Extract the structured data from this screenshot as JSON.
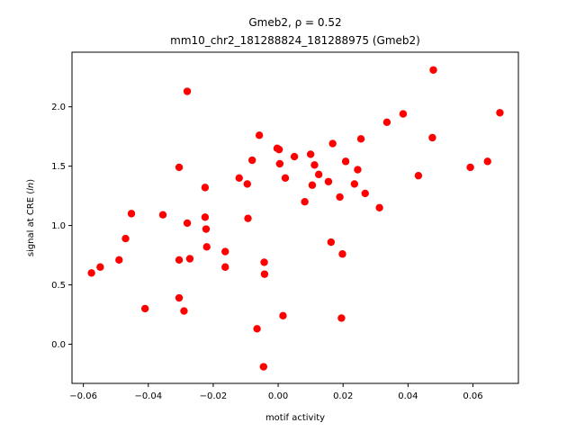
{
  "chart_data": {
    "type": "scatter",
    "title_line1": "Gmeb2, ρ = 0.52",
    "title_line2": "mm10_chr2_181288824_181288975 (Gmeb2)",
    "xlabel": "motif activity",
    "ylabel": "signal at CRE (ln)",
    "xlim": [
      -0.0635,
      0.074
    ],
    "ylim": [
      -0.33,
      2.46
    ],
    "xticks": [
      -0.06,
      -0.04,
      -0.02,
      0.0,
      0.02,
      0.04,
      0.06
    ],
    "xtick_labels": [
      "−0.06",
      "−0.04",
      "−0.02",
      "0.00",
      "0.02",
      "0.04",
      "0.06"
    ],
    "yticks": [
      0.0,
      0.5,
      1.0,
      1.5,
      2.0
    ],
    "ytick_labels": [
      "0.0",
      "0.5",
      "1.0",
      "1.5",
      "2.0"
    ],
    "grid": false,
    "marker_color": "#ff0000",
    "points": [
      {
        "x": -0.0575,
        "y": 0.6
      },
      {
        "x": -0.0548,
        "y": 0.65
      },
      {
        "x": -0.049,
        "y": 0.71
      },
      {
        "x": -0.047,
        "y": 0.89
      },
      {
        "x": -0.0452,
        "y": 1.1
      },
      {
        "x": -0.041,
        "y": 0.3
      },
      {
        "x": -0.0355,
        "y": 1.09
      },
      {
        "x": -0.0305,
        "y": 1.49
      },
      {
        "x": -0.0305,
        "y": 0.71
      },
      {
        "x": -0.0305,
        "y": 0.39
      },
      {
        "x": -0.029,
        "y": 0.28
      },
      {
        "x": -0.028,
        "y": 2.13
      },
      {
        "x": -0.028,
        "y": 1.02
      },
      {
        "x": -0.0272,
        "y": 0.72
      },
      {
        "x": -0.0225,
        "y": 1.32
      },
      {
        "x": -0.0225,
        "y": 1.07
      },
      {
        "x": -0.0222,
        "y": 0.97
      },
      {
        "x": -0.022,
        "y": 0.82
      },
      {
        "x": -0.0163,
        "y": 0.78
      },
      {
        "x": -0.0163,
        "y": 0.65
      },
      {
        "x": -0.012,
        "y": 1.4
      },
      {
        "x": -0.0095,
        "y": 1.35
      },
      {
        "x": -0.0093,
        "y": 1.06
      },
      {
        "x": -0.008,
        "y": 1.55
      },
      {
        "x": -0.0065,
        "y": 0.13
      },
      {
        "x": -0.0058,
        "y": 1.76
      },
      {
        "x": -0.0045,
        "y": -0.19
      },
      {
        "x": -0.0043,
        "y": 0.69
      },
      {
        "x": -0.0042,
        "y": 0.59
      },
      {
        "x": -0.0003,
        "y": 1.65
      },
      {
        "x": 0.0003,
        "y": 1.64
      },
      {
        "x": 0.0005,
        "y": 1.52
      },
      {
        "x": 0.0015,
        "y": 0.24
      },
      {
        "x": 0.0022,
        "y": 1.4
      },
      {
        "x": 0.005,
        "y": 1.58
      },
      {
        "x": 0.0082,
        "y": 1.2
      },
      {
        "x": 0.01,
        "y": 1.6
      },
      {
        "x": 0.0105,
        "y": 1.34
      },
      {
        "x": 0.0112,
        "y": 1.51
      },
      {
        "x": 0.0125,
        "y": 1.43
      },
      {
        "x": 0.0155,
        "y": 1.37
      },
      {
        "x": 0.0163,
        "y": 0.86
      },
      {
        "x": 0.0168,
        "y": 1.69
      },
      {
        "x": 0.019,
        "y": 1.24
      },
      {
        "x": 0.0195,
        "y": 0.22
      },
      {
        "x": 0.0198,
        "y": 0.76
      },
      {
        "x": 0.0208,
        "y": 1.54
      },
      {
        "x": 0.0235,
        "y": 1.35
      },
      {
        "x": 0.0245,
        "y": 1.47
      },
      {
        "x": 0.0255,
        "y": 1.73
      },
      {
        "x": 0.0268,
        "y": 1.27
      },
      {
        "x": 0.0312,
        "y": 1.15
      },
      {
        "x": 0.0335,
        "y": 1.87
      },
      {
        "x": 0.0385,
        "y": 1.94
      },
      {
        "x": 0.0432,
        "y": 1.42
      },
      {
        "x": 0.0475,
        "y": 1.74
      },
      {
        "x": 0.0478,
        "y": 2.31
      },
      {
        "x": 0.0592,
        "y": 1.49
      },
      {
        "x": 0.0645,
        "y": 1.54
      },
      {
        "x": 0.0683,
        "y": 1.95
      }
    ]
  }
}
